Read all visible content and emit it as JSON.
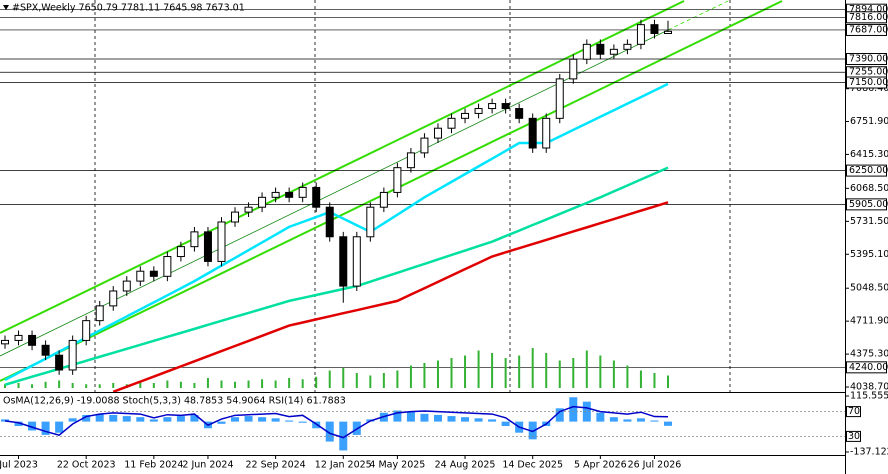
{
  "chart_data": {
    "type": "candlestick",
    "title": "#SPX,Weekly  7650.79 7781.11 7645.98 7673.01",
    "categories": [
      null,
      "Jul 2023",
      null,
      null,
      null,
      null,
      "22 Oct 2023",
      null,
      null,
      null,
      null,
      "11 Feb 2024",
      null,
      null,
      null,
      "2 Jun 2024",
      null,
      null,
      null,
      null,
      "22 Sep 2024",
      null,
      null,
      null,
      null,
      "12 Jan 2025",
      null,
      null,
      null,
      "4 May 2025",
      null,
      null,
      null,
      null,
      "24 Aug 2025",
      null,
      null,
      null,
      null,
      "14 Dec 2025",
      null,
      null,
      null,
      null,
      "5 Apr 2026",
      null,
      null,
      null,
      "26 Jul 2026",
      null
    ],
    "open": [
      4480,
      4515,
      4566,
      4465,
      4364,
      4213,
      4515,
      4717,
      4868,
      5020,
      5121,
      5222,
      5170,
      5372,
      5473,
      5624,
      5322,
      5725,
      5826,
      5876,
      5977,
      6027,
      5977,
      6078,
      5876,
      5574,
      5070,
      5574,
      5876,
      6027,
      6280,
      6431,
      6582,
      6683,
      6784,
      6834,
      6884,
      6935,
      6884,
      6784,
      6481,
      6784,
      7187,
      7388,
      7540,
      7439,
      7489,
      7540,
      7741,
      7650.79
    ],
    "high": [
      4565,
      4616,
      4616,
      4515,
      4414,
      4565,
      4767,
      4918,
      5070,
      5171,
      5272,
      5272,
      5422,
      5523,
      5674,
      5674,
      5775,
      5876,
      5926,
      6027,
      6077,
      6077,
      6128,
      6128,
      5926,
      5624,
      5624,
      5926,
      6077,
      6330,
      6481,
      6632,
      6733,
      6834,
      6884,
      6934,
      6985,
      6985,
      6934,
      6834,
      6834,
      7237,
      7438,
      7590,
      7590,
      7539,
      7590,
      7791,
      7791,
      7781.11
    ],
    "low": [
      4430,
      4465,
      4415,
      4314,
      4163,
      4163,
      4465,
      4667,
      4818,
      4970,
      5071,
      5120,
      5120,
      5322,
      5423,
      5272,
      5272,
      5675,
      5776,
      5826,
      5927,
      5927,
      5927,
      5826,
      5524,
      4900,
      5020,
      5524,
      5826,
      5977,
      6230,
      6381,
      6532,
      6633,
      6734,
      6784,
      6834,
      6834,
      6734,
      6431,
      6431,
      6734,
      7137,
      7338,
      7389,
      7389,
      7439,
      7490,
      7600,
      7645.98
    ],
    "close": [
      4515,
      4566,
      4465,
      4364,
      4213,
      4515,
      4717,
      4868,
      5020,
      5121,
      5222,
      5170,
      5372,
      5473,
      5624,
      5322,
      5725,
      5826,
      5876,
      5977,
      6027,
      5977,
      6078,
      5876,
      5574,
      5070,
      5574,
      5876,
      6027,
      6280,
      6431,
      6582,
      6683,
      6784,
      6834,
      6884,
      6935,
      6884,
      6784,
      6481,
      6784,
      7187,
      7388,
      7540,
      7439,
      7489,
      7540,
      7741,
      7650.79,
      7673.01
    ],
    "up_color": "#ffffff",
    "down_color": "#000000",
    "ylim": [
      3988,
      7993
    ],
    "yticks": [
      {
        "value": 7086.4,
        "label": "7086.40"
      },
      {
        "value": 6751.9,
        "label": "6751.90"
      },
      {
        "value": 6415.3,
        "label": "6415.30"
      },
      {
        "value": 6068.5,
        "label": "6068.50"
      },
      {
        "value": 5731.5,
        "label": "5731.50"
      },
      {
        "value": 5395.1,
        "label": "5395.10"
      },
      {
        "value": 5048.5,
        "label": "5048.50"
      },
      {
        "value": 4711.9,
        "label": "4711.90"
      },
      {
        "value": 4375.3,
        "label": "4375.30"
      },
      {
        "value": 4038.7,
        "label": "4038.70"
      }
    ],
    "levels": [
      {
        "value": 7894,
        "label": "7894.00"
      },
      {
        "value": 7816,
        "label": "7816.00"
      },
      {
        "value": 7687,
        "label": "7687.00"
      },
      {
        "value": 7390,
        "label": "7390.00"
      },
      {
        "value": 7255,
        "label": "7255.00"
      },
      {
        "value": 7150,
        "label": "7150.00"
      },
      {
        "value": 6250,
        "label": "6250.00"
      },
      {
        "value": 5905,
        "label": "5905.00"
      },
      {
        "value": 4240,
        "label": "4240.00"
      }
    ],
    "moving_averages": [
      {
        "color": "#00e5ff",
        "values": [
          4112,
          4184,
          4256,
          4328,
          4400,
          4472,
          4544,
          4616,
          4688,
          4760,
          4832,
          4904,
          4976,
          5048,
          5121,
          5200,
          5279,
          5358,
          5437,
          5516,
          5595,
          5675,
          5725,
          5775,
          5826,
          5759,
          5692,
          5624,
          5712,
          5800,
          5888,
          5977,
          6056,
          6135,
          6214,
          6293,
          6372,
          6451,
          6532,
          6532,
          6532,
          6599,
          6666,
          6733,
          6800,
          6867,
          6934,
          7001,
          7068,
          7136
        ]
      },
      {
        "color": "#00e0a0",
        "values": [
          4062,
          4103,
          4144,
          4184,
          4225,
          4266,
          4307,
          4348,
          4388,
          4429,
          4470,
          4511,
          4552,
          4592,
          4633,
          4674,
          4715,
          4756,
          4796,
          4837,
          4878,
          4919,
          4949,
          4979,
          5010,
          5040,
          5070,
          5115,
          5161,
          5206,
          5252,
          5297,
          5342,
          5388,
          5433,
          5479,
          5524,
          5581,
          5637,
          5694,
          5750,
          5807,
          5864,
          5920,
          5977,
          6038,
          6098,
          6159,
          6219,
          6280
        ]
      },
      {
        "color": "#e00000",
        "values": [
          null,
          null,
          null,
          null,
          null,
          null,
          null,
          null,
          3990,
          4042,
          4094,
          4146,
          4198,
          4250,
          4302,
          4354,
          4406,
          4458,
          4510,
          4562,
          4614,
          4667,
          4698,
          4730,
          4761,
          4793,
          4824,
          4856,
          4887,
          4919,
          4984,
          5048,
          5113,
          5178,
          5243,
          5307,
          5372,
          5415,
          5457,
          5500,
          5542,
          5585,
          5628,
          5670,
          5713,
          5755,
          5798,
          5841,
          5883,
          5926
        ]
      }
    ],
    "volume": {
      "color": "#33b233",
      "values": [
        3,
        4,
        3,
        5,
        6,
        4,
        3,
        3,
        4,
        3,
        5,
        4,
        6,
        5,
        4,
        8,
        6,
        5,
        6,
        7,
        6,
        8,
        7,
        9,
        14,
        16,
        12,
        10,
        12,
        14,
        18,
        20,
        22,
        24,
        26,
        30,
        28,
        24,
        26,
        32,
        28,
        22,
        24,
        30,
        26,
        22,
        18,
        14,
        12,
        10
      ]
    },
    "indicator": {
      "title": "OsMA(12,26,9) -19.0088 Stoch(5,3,3) 48.7853 54.9064 RSI(14) 61.7883",
      "osma": {
        "color": "#3aa0ff",
        "ylim": [
          -137.1227,
          115.5551
        ],
        "yticks": [
          115.5551,
          -137.1227
        ],
        "values": [
          10,
          -20,
          -40,
          -60,
          -50,
          15,
          30,
          35,
          30,
          25,
          20,
          10,
          20,
          25,
          30,
          -30,
          -10,
          20,
          25,
          20,
          15,
          5,
          -5,
          -30,
          -90,
          -130,
          -60,
          10,
          40,
          50,
          45,
          35,
          30,
          25,
          20,
          15,
          10,
          -20,
          -50,
          -80,
          -20,
          60,
          110,
          90,
          40,
          20,
          10,
          15,
          5,
          -19.0088
        ]
      },
      "rsi": {
        "color": "#0000c8",
        "ylim": [
          0,
          100
        ],
        "yticks": [
          70,
          30
        ],
        "values": [
          55,
          52,
          45,
          38,
          32,
          50,
          62,
          66,
          68,
          67,
          66,
          60,
          65,
          64,
          66,
          48,
          58,
          64,
          65,
          66,
          67,
          62,
          64,
          50,
          35,
          28,
          42,
          55,
          62,
          68,
          70,
          71,
          70,
          69,
          68,
          67,
          66,
          60,
          45,
          38,
          50,
          70,
          78,
          76,
          70,
          68,
          66,
          69,
          62,
          61.7883
        ]
      }
    }
  }
}
